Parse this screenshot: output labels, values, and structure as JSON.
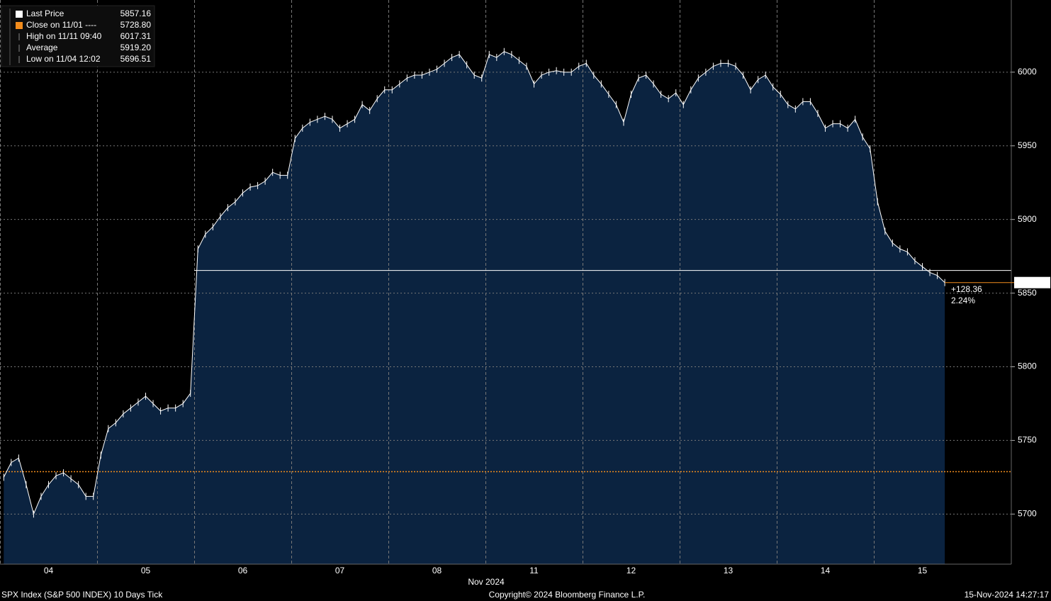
{
  "chart_data": {
    "type": "line",
    "categories": [
      "04",
      "05",
      "06",
      "07",
      "08",
      "11",
      "12",
      "13",
      "14",
      "15"
    ],
    "x_sublabel": "Nov 2024",
    "series": [
      {
        "name": "Last Price",
        "color": "#ffffff",
        "fill": "#0b2340",
        "values": [
          [
            5725,
            5735,
            5738,
            5720,
            5700,
            5712,
            5720,
            5726,
            5728,
            5724,
            5720,
            5712,
            5712
          ],
          [
            5740,
            5758,
            5762,
            5768,
            5772,
            5776,
            5780,
            5775,
            5770,
            5772,
            5772,
            5775,
            5782
          ],
          [
            5880,
            5890,
            5895,
            5902,
            5908,
            5912,
            5918,
            5922,
            5923,
            5926,
            5932,
            5930,
            5930
          ],
          [
            5955,
            5962,
            5966,
            5968,
            5970,
            5968,
            5962,
            5965,
            5968,
            5978,
            5974,
            5982,
            5988
          ],
          [
            5988,
            5992,
            5996,
            5998,
            5998,
            6000,
            6002,
            6006,
            6010,
            6012,
            6005,
            5998,
            5996
          ],
          [
            6012,
            6010,
            6014,
            6012,
            6008,
            6004,
            5992,
            5998,
            6000,
            6001,
            6000,
            6000,
            6004
          ],
          [
            6006,
            5998,
            5992,
            5985,
            5978,
            5966,
            5985,
            5996,
            5998,
            5992,
            5985,
            5982,
            5986
          ],
          [
            5978,
            5988,
            5996,
            6000,
            6004,
            6006,
            6006,
            6004,
            5998,
            5988,
            5995,
            5998,
            5990
          ],
          [
            5985,
            5978,
            5975,
            5980,
            5980,
            5972,
            5962,
            5965,
            5965,
            5962,
            5968,
            5956,
            5948
          ],
          [
            5912,
            5892,
            5884,
            5880,
            5878,
            5872,
            5868,
            5864,
            5862,
            5857.16
          ]
        ]
      }
    ],
    "stats": [
      {
        "name": "Last Price",
        "value": 5857.16,
        "color": "#ffffff"
      },
      {
        "name": "Close on 11/01 ----",
        "value": 5728.8,
        "value_label": "5728.80",
        "color": "#f28c1c"
      },
      {
        "name": "High on 11/11 09:40",
        "value": 6017.31
      },
      {
        "name": "Average",
        "value": 5919.2,
        "value_label": "5919.20"
      },
      {
        "name": "Low on 11/04 12:02",
        "value": 5696.51
      }
    ],
    "open_line": 5865.4,
    "change": {
      "value": 128.36,
      "label": "+128.36"
    },
    "change_pct": {
      "value": 2.24,
      "label": "2.24%"
    },
    "ylim": [
      5666,
      6049
    ],
    "yticks": [
      5700,
      5750,
      5800,
      5850,
      5900,
      5950,
      6000
    ],
    "grid": true,
    "footer": {
      "left": "SPX Index (S&P 500 INDEX) 10 Days  Tick",
      "center": "Copyright© 2024 Bloomberg Finance L.P.",
      "right": "15-Nov-2024 14:27:17"
    }
  }
}
